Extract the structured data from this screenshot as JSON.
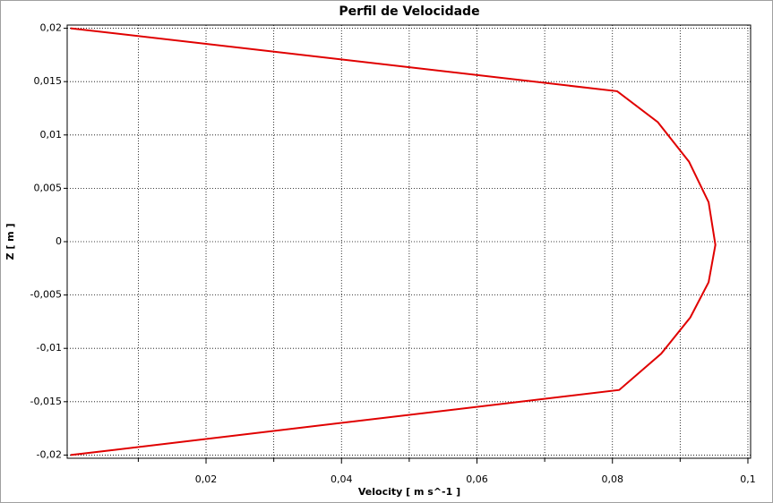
{
  "chart_data": {
    "type": "line",
    "title": "Perfil de Velocidade",
    "x_label": "Velocity [ m s^-1 ]",
    "y_label": "Z [ m ]",
    "x": [
      0,
      0.0807,
      0.0867,
      0.0913,
      0.0942,
      0.0952,
      0.0942,
      0.0915,
      0.0872,
      0.081,
      0
    ],
    "values": [
      0.02,
      0.0141,
      0.0112,
      0.0075,
      0.0037,
      -0.0003,
      -0.0038,
      -0.0071,
      -0.0105,
      -0.0139,
      -0.02
    ],
    "color": "#e00000",
    "xlim": [
      -0.0005,
      0.1004
    ],
    "ylim": [
      -0.0203,
      0.0203
    ],
    "xticks": [
      {
        "value": 0.02,
        "label": "0,02"
      },
      {
        "value": 0.04,
        "label": "0,04"
      },
      {
        "value": 0.06,
        "label": "0,06"
      },
      {
        "value": 0.08,
        "label": "0,08"
      },
      {
        "value": 0.1,
        "label": "0,1"
      }
    ],
    "x_minor_ticks": [
      0.01,
      0.03,
      0.05,
      0.07,
      0.09
    ],
    "yticks": [
      {
        "value": 0.02,
        "label": "0,02"
      },
      {
        "value": 0.015,
        "label": "0,015"
      },
      {
        "value": 0.01,
        "label": "0,01"
      },
      {
        "value": 0.005,
        "label": "0,005"
      },
      0,
      {
        "value": -0.005,
        "label": "-0,005"
      },
      {
        "value": -0.01,
        "label": "-0,01"
      },
      {
        "value": -0.015,
        "label": "-0,015"
      },
      {
        "value": -0.02,
        "label": "-0,02"
      }
    ],
    "grid": true
  }
}
